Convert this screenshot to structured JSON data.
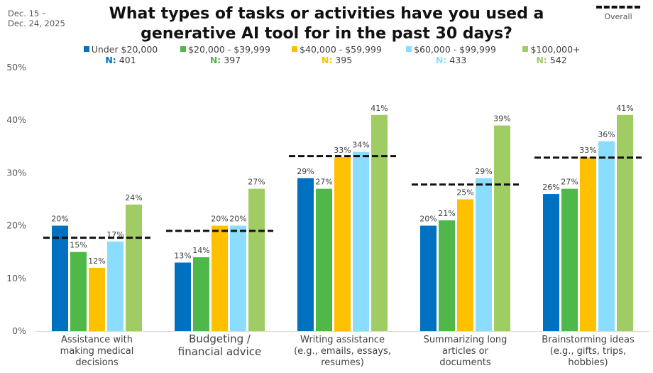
{
  "date_range": "Dec. 15 –\nDec. 24, 2025",
  "title": "What types of tasks or activities have you used a generative AI tool for in the past 30 days?",
  "overall_legend_label": "Overall",
  "legend": [
    {
      "name": "Under $20,000",
      "n_prefix": "N:",
      "n": "401",
      "color": "#0070C0"
    },
    {
      "name": "$20,000 - $39,999",
      "n_prefix": "N:",
      "n": "397",
      "color": "#50B848"
    },
    {
      "name": "$40,000 - $59,999",
      "n_prefix": "N:",
      "n": "395",
      "color": "#FFC000"
    },
    {
      "name": "$60,000 - $99,999",
      "n_prefix": "N:",
      "n": "433",
      "color": "#8BDDFF"
    },
    {
      "name": "$100,000+",
      "n_prefix": "N:",
      "n": "542",
      "color": "#A0CC64"
    }
  ],
  "chart_data": {
    "type": "bar",
    "title": "What types of tasks or activities have you used a generative AI tool for in the past 30 days?",
    "xlabel": "",
    "ylabel": "",
    "ylim": [
      0,
      50
    ],
    "y_ticks": [
      "0%",
      "10%",
      "20%",
      "30%",
      "40%",
      "50%"
    ],
    "grid": false,
    "legend_position": "top",
    "categories": [
      [
        "Assistance with",
        "making medical",
        "decisions"
      ],
      [
        "Budgeting /",
        "financial advice"
      ],
      [
        "Writing assistance",
        "(e.g., emails, essays,",
        "resumes)"
      ],
      [
        "Summarizing long",
        "articles or",
        "documents"
      ],
      [
        "Brainstorming ideas",
        "(e.g., gifts, trips,",
        "hobbies)"
      ]
    ],
    "series": [
      {
        "name": "Under $20,000",
        "values": [
          20,
          13,
          29,
          20,
          26
        ],
        "labels": [
          "20%",
          "13%",
          "29%",
          "20%",
          "26%"
        ]
      },
      {
        "name": "$20,000 - $39,999",
        "values": [
          15,
          14,
          27,
          21,
          27
        ],
        "labels": [
          "15%",
          "14%",
          "27%",
          "21%",
          "27%"
        ]
      },
      {
        "name": "$40,000 - $59,999",
        "values": [
          12,
          20,
          33,
          25,
          33
        ],
        "labels": [
          "12%",
          "20%",
          "33%",
          "25%",
          "33%"
        ]
      },
      {
        "name": "$60,000 - $99,999",
        "values": [
          17,
          20,
          34,
          29,
          36
        ],
        "labels": [
          "17%",
          "20%",
          "34%",
          "29%",
          "36%"
        ]
      },
      {
        "name": "$100,000+",
        "values": [
          24,
          27,
          41,
          39,
          41
        ],
        "labels": [
          "24%",
          "27%",
          "41%",
          "39%",
          "41%"
        ]
      }
    ],
    "overall": {
      "name": "Overall",
      "values": [
        17.7,
        19,
        33.2,
        27.8,
        32.9
      ]
    }
  }
}
